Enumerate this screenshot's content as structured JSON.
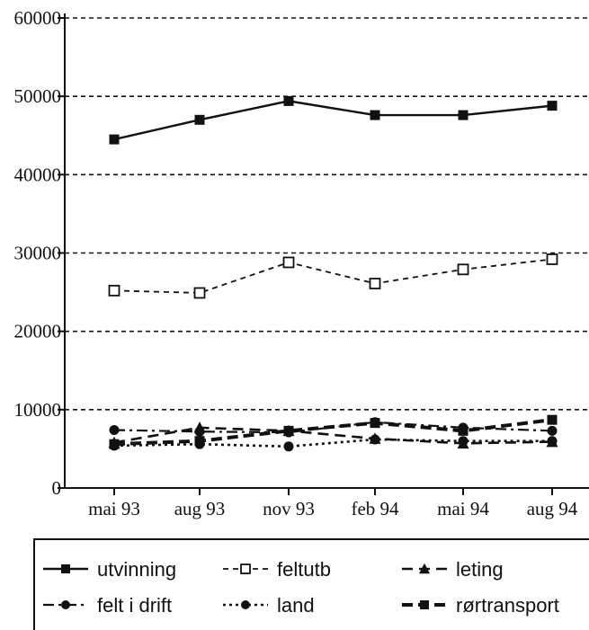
{
  "chart_data": {
    "type": "line",
    "categories": [
      "mai 93",
      "aug 93",
      "nov 93",
      "feb 94",
      "mai 94",
      "aug 94"
    ],
    "ylim": [
      0,
      60000
    ],
    "yticks": [
      "60000",
      "50000",
      "40000",
      "30000",
      "20000",
      "10000",
      "0"
    ],
    "grid": true,
    "legend_position": "bottom",
    "series": [
      {
        "name": "utvinning",
        "values": [
          44500,
          47000,
          49400,
          47600,
          47600,
          48800
        ],
        "line": "solid",
        "marker": "square-filled",
        "color": "#111111"
      },
      {
        "name": "feltutb",
        "values": [
          25200,
          24900,
          28800,
          26100,
          27900,
          29200
        ],
        "line": "dashed",
        "marker": "square-open",
        "color": "#111111"
      },
      {
        "name": "leting",
        "values": [
          5800,
          7700,
          7300,
          6300,
          5700,
          5900
        ],
        "line": "longdash",
        "marker": "triangle-filled",
        "color": "#111111"
      },
      {
        "name": "felt i drift",
        "values": [
          7400,
          7200,
          7100,
          8400,
          7700,
          7300
        ],
        "line": "dashdot",
        "marker": "circle-filled",
        "color": "#111111"
      },
      {
        "name": "land",
        "values": [
          5400,
          5600,
          5300,
          6200,
          6000,
          6000
        ],
        "line": "dotted",
        "marker": "circle-filled",
        "color": "#111111"
      },
      {
        "name": "rørtransport",
        "values": [
          5600,
          6000,
          7300,
          8300,
          7300,
          8700
        ],
        "line": "heavydash",
        "marker": "square-filled",
        "color": "#111111"
      }
    ]
  }
}
